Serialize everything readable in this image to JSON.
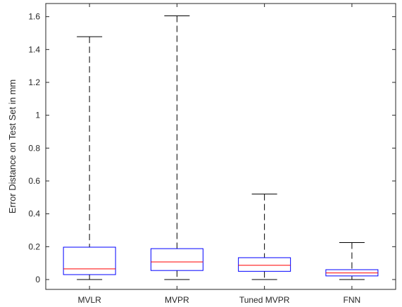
{
  "chart_data": {
    "type": "box",
    "title": "",
    "xlabel": "",
    "ylabel": "Error Distance on Test Set in mm",
    "ylim": [
      -0.06,
      1.68
    ],
    "yticks": [
      0,
      0.2,
      0.4,
      0.6,
      0.8,
      1,
      1.2,
      1.4,
      1.6
    ],
    "ytick_labels": [
      "0",
      "0.2",
      "0.4",
      "0.6",
      "0.8",
      "1",
      "1.2",
      "1.4",
      "1.6"
    ],
    "grid": false,
    "categories": [
      "MVLR",
      "MVPR",
      "Tuned MVPR",
      "FNN"
    ],
    "boxes": [
      {
        "category": "MVLR",
        "min": 0.0,
        "q1": 0.03,
        "median": 0.065,
        "q3": 0.197,
        "max": 1.478
      },
      {
        "category": "MVPR",
        "min": 0.0,
        "q1": 0.055,
        "median": 0.107,
        "q3": 0.188,
        "max": 1.605
      },
      {
        "category": "Tuned MVPR",
        "min": 0.0,
        "q1": 0.05,
        "median": 0.087,
        "q3": 0.133,
        "max": 0.52
      },
      {
        "category": "FNN",
        "min": 0.0,
        "q1": 0.022,
        "median": 0.04,
        "q3": 0.06,
        "max": 0.225
      }
    ],
    "colors": {
      "box": "#0000ff",
      "median": "#ff0000",
      "whisker": "#000000",
      "axis": "#262626"
    }
  }
}
